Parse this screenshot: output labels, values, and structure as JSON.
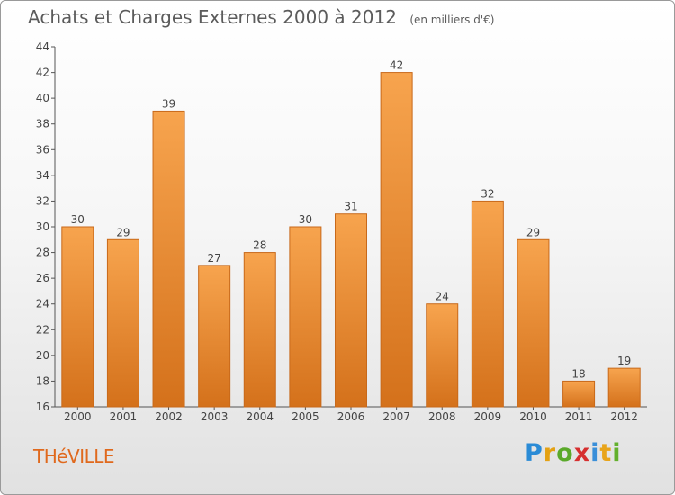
{
  "header": {
    "title": "Achats et Charges Externes 2000 à 2012",
    "unit": "(en milliers d'€)"
  },
  "footer": {
    "town": "THéVILLE",
    "logo": {
      "letters": [
        "P",
        "r",
        "o",
        "x",
        "i",
        "t",
        "i"
      ]
    }
  },
  "chart_data": {
    "type": "bar",
    "categories": [
      "2000",
      "2001",
      "2002",
      "2003",
      "2004",
      "2005",
      "2006",
      "2007",
      "2008",
      "2009",
      "2010",
      "2011",
      "2012"
    ],
    "values": [
      30,
      29,
      39,
      27,
      28,
      30,
      31,
      42,
      24,
      32,
      29,
      18,
      19
    ],
    "ylim": [
      16,
      44
    ],
    "yticks": [
      16,
      18,
      20,
      22,
      24,
      26,
      28,
      30,
      32,
      34,
      36,
      38,
      40,
      42,
      44
    ],
    "grid": false,
    "colors": {
      "bar_top": "#f7a44e",
      "bar_bottom": "#d4711b",
      "bar_edge": "#c8691a"
    }
  }
}
